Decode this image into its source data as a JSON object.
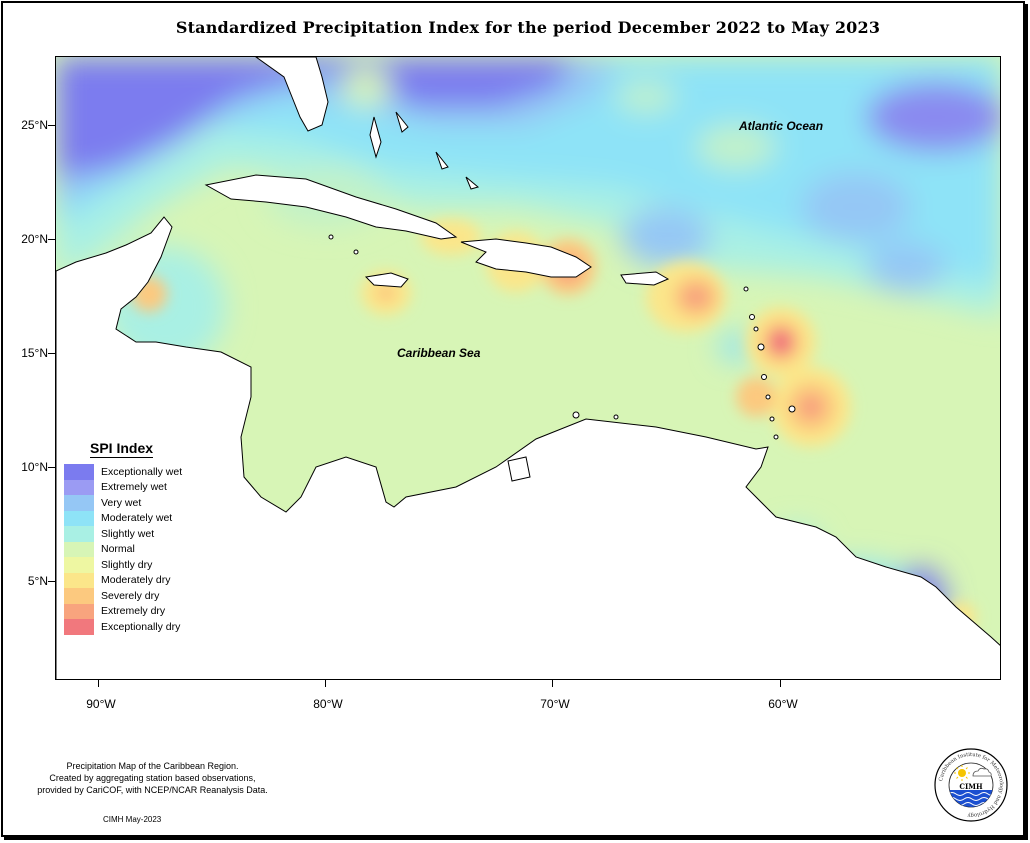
{
  "title": "Standardized Precipitation Index for the period December 2022 to May 2023",
  "axes": {
    "lat_ticks": [
      {
        "label": "25°N",
        "lat": 25
      },
      {
        "label": "20°N",
        "lat": 20
      },
      {
        "label": "15°N",
        "lat": 15
      },
      {
        "label": "10°N",
        "lat": 10
      },
      {
        "label": "5°N",
        "lat": 5
      }
    ],
    "lon_ticks": [
      {
        "label": "90°W",
        "lon": -90
      },
      {
        "label": "80°W",
        "lon": -80
      },
      {
        "label": "70°W",
        "lon": -70
      },
      {
        "label": "60°W",
        "lon": -60
      }
    ]
  },
  "map_labels": {
    "atlantic": "Atlantic Ocean",
    "caribbean": "Caribbean Sea"
  },
  "legend": {
    "title": "SPI Index",
    "items": [
      {
        "label": "Exceptionally wet",
        "color": "#7b7bef"
      },
      {
        "label": "Extremely wet",
        "color": "#9b9bf3"
      },
      {
        "label": "Very wet",
        "color": "#95c7f5"
      },
      {
        "label": "Moderately wet",
        "color": "#8ee3f7"
      },
      {
        "label": "Slightly wet",
        "color": "#a9f0e4"
      },
      {
        "label": "Normal",
        "color": "#d7f5b6"
      },
      {
        "label": "Slightly dry",
        "color": "#eef7a2"
      },
      {
        "label": "Moderately dry",
        "color": "#fbe68a"
      },
      {
        "label": "Severely dry",
        "color": "#fcc97f"
      },
      {
        "label": "Extremely dry",
        "color": "#f8a47e"
      },
      {
        "label": "Exceptionally dry",
        "color": "#f1787d"
      }
    ]
  },
  "footnote": {
    "lines": [
      "Precipitation Map of the Caribbean Region.",
      "Created by aggregating station based observations,",
      "provided by CariCOF, with NCEP/NCAR Reanalysis Data."
    ],
    "credit": "CIMH May-2023"
  },
  "logo": {
    "text": "CIMH",
    "ring_text": "Caribbean Institute for Meteorology and Hydrology"
  }
}
